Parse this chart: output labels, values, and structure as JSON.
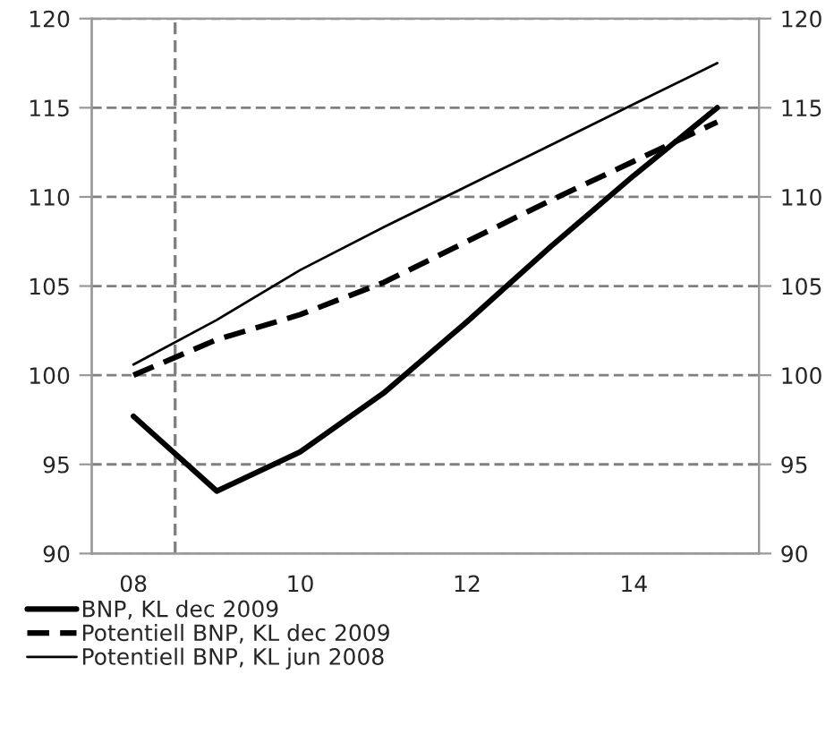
{
  "chart_data": {
    "type": "line",
    "x": [
      2008,
      2009,
      2010,
      2011,
      2012,
      2013,
      2014,
      2015
    ],
    "series": [
      {
        "name": "BNP, KL dec 2009",
        "color": "#000000",
        "line_style": "solid",
        "values": [
          97.7,
          93.5,
          95.7,
          99.0,
          103.0,
          107.2,
          111.2,
          115.0
        ]
      },
      {
        "name": "Potentiell BNP, KL dec 2009",
        "color": "#000000",
        "line_style": "dashed",
        "values": [
          100.0,
          102.0,
          103.4,
          105.2,
          107.5,
          109.8,
          112.0,
          114.2
        ]
      },
      {
        "name": "Potentiell BNP, KL jun 2008",
        "color": "#000000",
        "line_style": "solid",
        "values": [
          100.6,
          103.1,
          105.9,
          108.3,
          110.6,
          112.9,
          115.2,
          117.5
        ]
      }
    ],
    "xlim": [
      2007.5,
      2015.5
    ],
    "xticks": [
      {
        "value": 2008,
        "label": "08"
      },
      {
        "value": 2010,
        "label": "10"
      },
      {
        "value": 2012,
        "label": "12"
      },
      {
        "value": 2014,
        "label": "14"
      }
    ],
    "ylim": [
      90,
      120
    ],
    "yticks": [
      90,
      95,
      100,
      105,
      110,
      115,
      120
    ],
    "y2lim": [
      90,
      120
    ],
    "y2ticks": [
      90,
      95,
      100,
      105,
      110,
      115,
      120
    ],
    "ref_lines": [
      {
        "axis": "x",
        "value": 2008.5,
        "label": null,
        "color": "#808080",
        "line_style": "dashed"
      }
    ],
    "grid": "y",
    "legend": "bottom",
    "marker": "none"
  }
}
